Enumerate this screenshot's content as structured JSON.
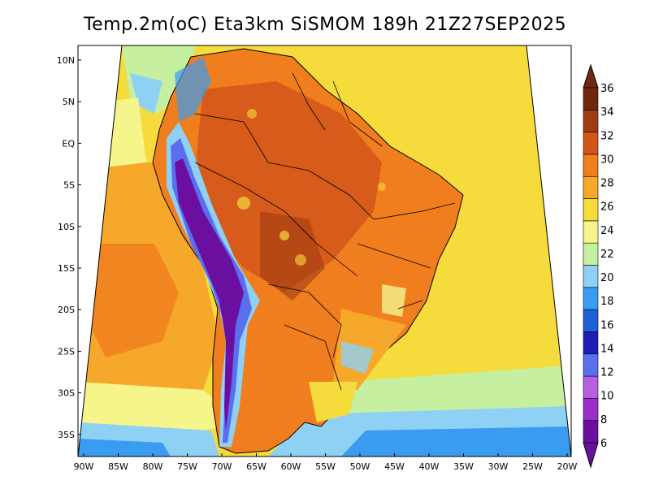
{
  "title": "Temp.2m(oC) Eta3km SiSMOM 189h 21Z27SEP2025",
  "lat_labels": [
    "10N",
    "5N",
    "EQ",
    "5S",
    "10S",
    "15S",
    "20S",
    "25S",
    "30S",
    "35S"
  ],
  "lon_labels": [
    "90W",
    "85W",
    "80W",
    "75W",
    "70W",
    "65W",
    "60W",
    "55W",
    "50W",
    "45W",
    "40W",
    "35W",
    "30W",
    "25W",
    "20W"
  ],
  "colorbar": {
    "labels": [
      "6",
      "8",
      "10",
      "12",
      "14",
      "16",
      "18",
      "20",
      "22",
      "24",
      "26",
      "28",
      "30",
      "32",
      "34",
      "36"
    ],
    "colors": [
      "#6a0fa0",
      "#9b2fc8",
      "#b85fe0",
      "#5a6ef0",
      "#1e1eb4",
      "#1f5fd8",
      "#3a9cf0",
      "#8fd0f5",
      "#c6f0a0",
      "#f5f58c",
      "#f5dc3c",
      "#f5a82a",
      "#f07d1e",
      "#d2551a",
      "#a03c14",
      "#6e280f"
    ]
  }
}
